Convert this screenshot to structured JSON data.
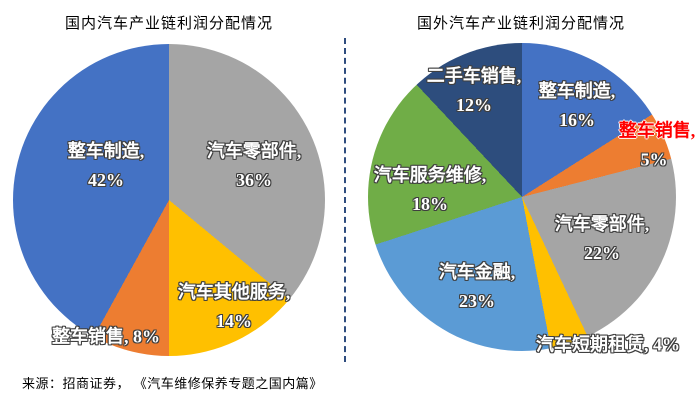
{
  "figure": {
    "background": "#FFFFFF",
    "divider_color": "#2E4C7E",
    "divider_style": "vertical-dashed-line",
    "source_note": "来源：招商证券， 《汽车维修保养专题之国内篇》"
  },
  "colors": {
    "blue": "#4472C4",
    "orange": "#ED7D31",
    "gray": "#A5A5A5",
    "yellow": "#FFC000",
    "light_blue": "#5B9BD5",
    "green": "#70AD47",
    "dark_blue": "#2D4D7D",
    "red_label_text": "#FF0000",
    "white_label_text": "#FFFFFF",
    "title_text": "#000000"
  },
  "chart_data": [
    {
      "type": "pie",
      "title": "国内汽车产业链利润分配情况",
      "start_angle": "top",
      "direction": "clockwise",
      "legend": "none",
      "label_style": "white-bold-with-dark-outline, inside slices",
      "slices": [
        {
          "label": "汽车零部件",
          "value": 36,
          "color": "#A5A5A5"
        },
        {
          "label": "汽车其他服务",
          "value": 14,
          "color": "#FFC000"
        },
        {
          "label": "整车销售",
          "value": 8,
          "color": "#ED7D31"
        },
        {
          "label": "整车制造",
          "value": 42,
          "color": "#4472C4"
        }
      ]
    },
    {
      "type": "pie",
      "title": "国外汽车产业链利润分配情况",
      "start_angle": "top",
      "direction": "clockwise",
      "legend": "none",
      "label_style": "white-bold-with-dark-outline; 整车销售 label in red",
      "slices": [
        {
          "label": "整车制造",
          "value": 16,
          "color": "#4472C4"
        },
        {
          "label": "整车销售",
          "value": 5,
          "color": "#ED7D31"
        },
        {
          "label": "汽车零部件",
          "value": 22,
          "color": "#A5A5A5"
        },
        {
          "label": "汽车短期租赁",
          "value": 4,
          "color": "#FFC000"
        },
        {
          "label": "汽车金融",
          "value": 23,
          "color": "#5B9BD5"
        },
        {
          "label": "汽车服务维修",
          "value": 18,
          "color": "#70AD47"
        },
        {
          "label": "二手车销售",
          "value": 12,
          "color": "#2D4D7D"
        }
      ]
    }
  ],
  "pies": {
    "left": {
      "title": "国内汽车产业链利润分配情况",
      "labels": [
        {
          "line1": "整车制造,",
          "line2": "42%"
        },
        {
          "line1": "汽车零部件,",
          "line2": "36%"
        },
        {
          "line1": "汽车其他服务,",
          "line2": "14%"
        },
        {
          "line1": "整车销售, 8%"
        }
      ]
    },
    "right": {
      "title": "国外汽车产业链利润分配情况",
      "labels": [
        {
          "line1": "二手车销售,",
          "line2": "12%"
        },
        {
          "line1": "整车制造,",
          "line2": "16%"
        },
        {
          "line1": "整车销售,"
        },
        {
          "line1": "5%"
        },
        {
          "line1": "汽车零部件,",
          "line2": "22%"
        },
        {
          "line1": "汽车金融,",
          "line2": "23%"
        },
        {
          "line1": "汽车服务维修,",
          "line2": "18%"
        },
        {
          "line1": "汽车短期租赁, 4%"
        }
      ]
    }
  }
}
